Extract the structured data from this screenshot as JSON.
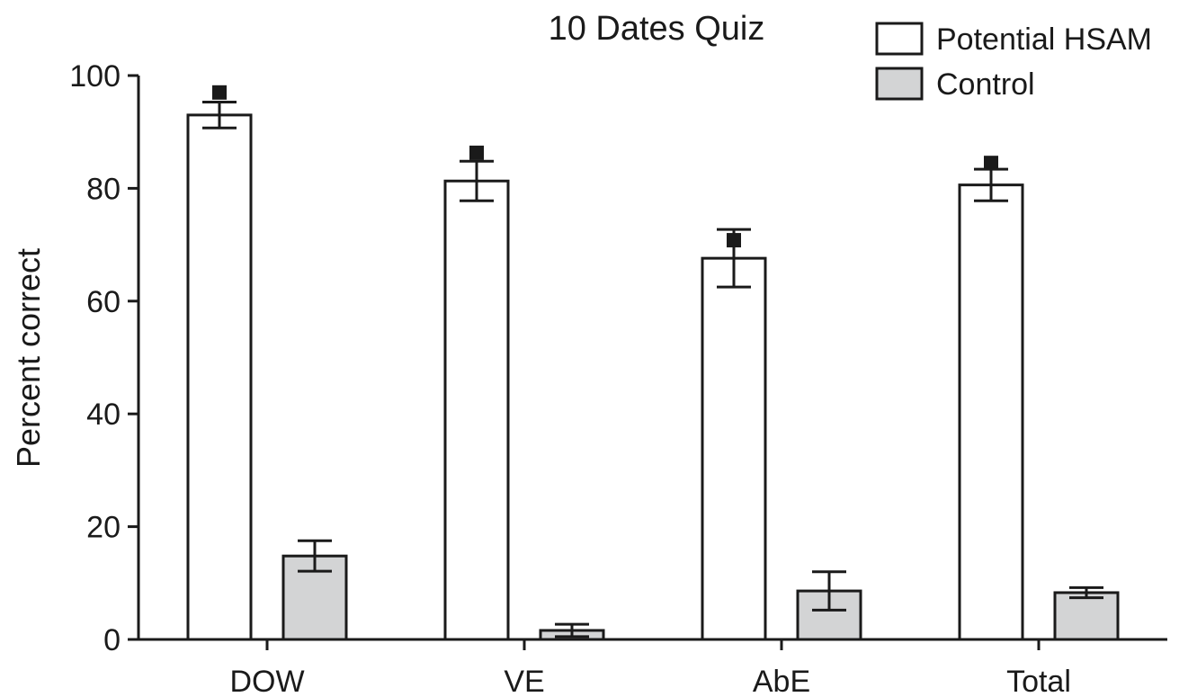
{
  "chart_data": {
    "type": "bar",
    "title": "10 Dates Quiz",
    "xlabel": "",
    "ylabel": "Percent correct",
    "ylim": [
      0,
      100
    ],
    "yticks": [
      0,
      20,
      40,
      60,
      80,
      100
    ],
    "grid": false,
    "legend_position": "top-right",
    "categories": [
      "DOW",
      "VE",
      "AbE",
      "Total"
    ],
    "series": [
      {
        "name": "Potential HSAM",
        "color": "#ffffff",
        "values": [
          93,
          81.3,
          67.6,
          80.6
        ],
        "error": [
          2.3,
          3.5,
          5.1,
          2.8
        ],
        "marker_values": [
          97,
          86.3,
          70.8,
          84.5
        ]
      },
      {
        "name": "Control",
        "color": "#d3d4d5",
        "values": [
          14.8,
          1.6,
          8.6,
          8.3
        ],
        "error": [
          2.7,
          1.1,
          3.4,
          0.9
        ]
      }
    ]
  }
}
